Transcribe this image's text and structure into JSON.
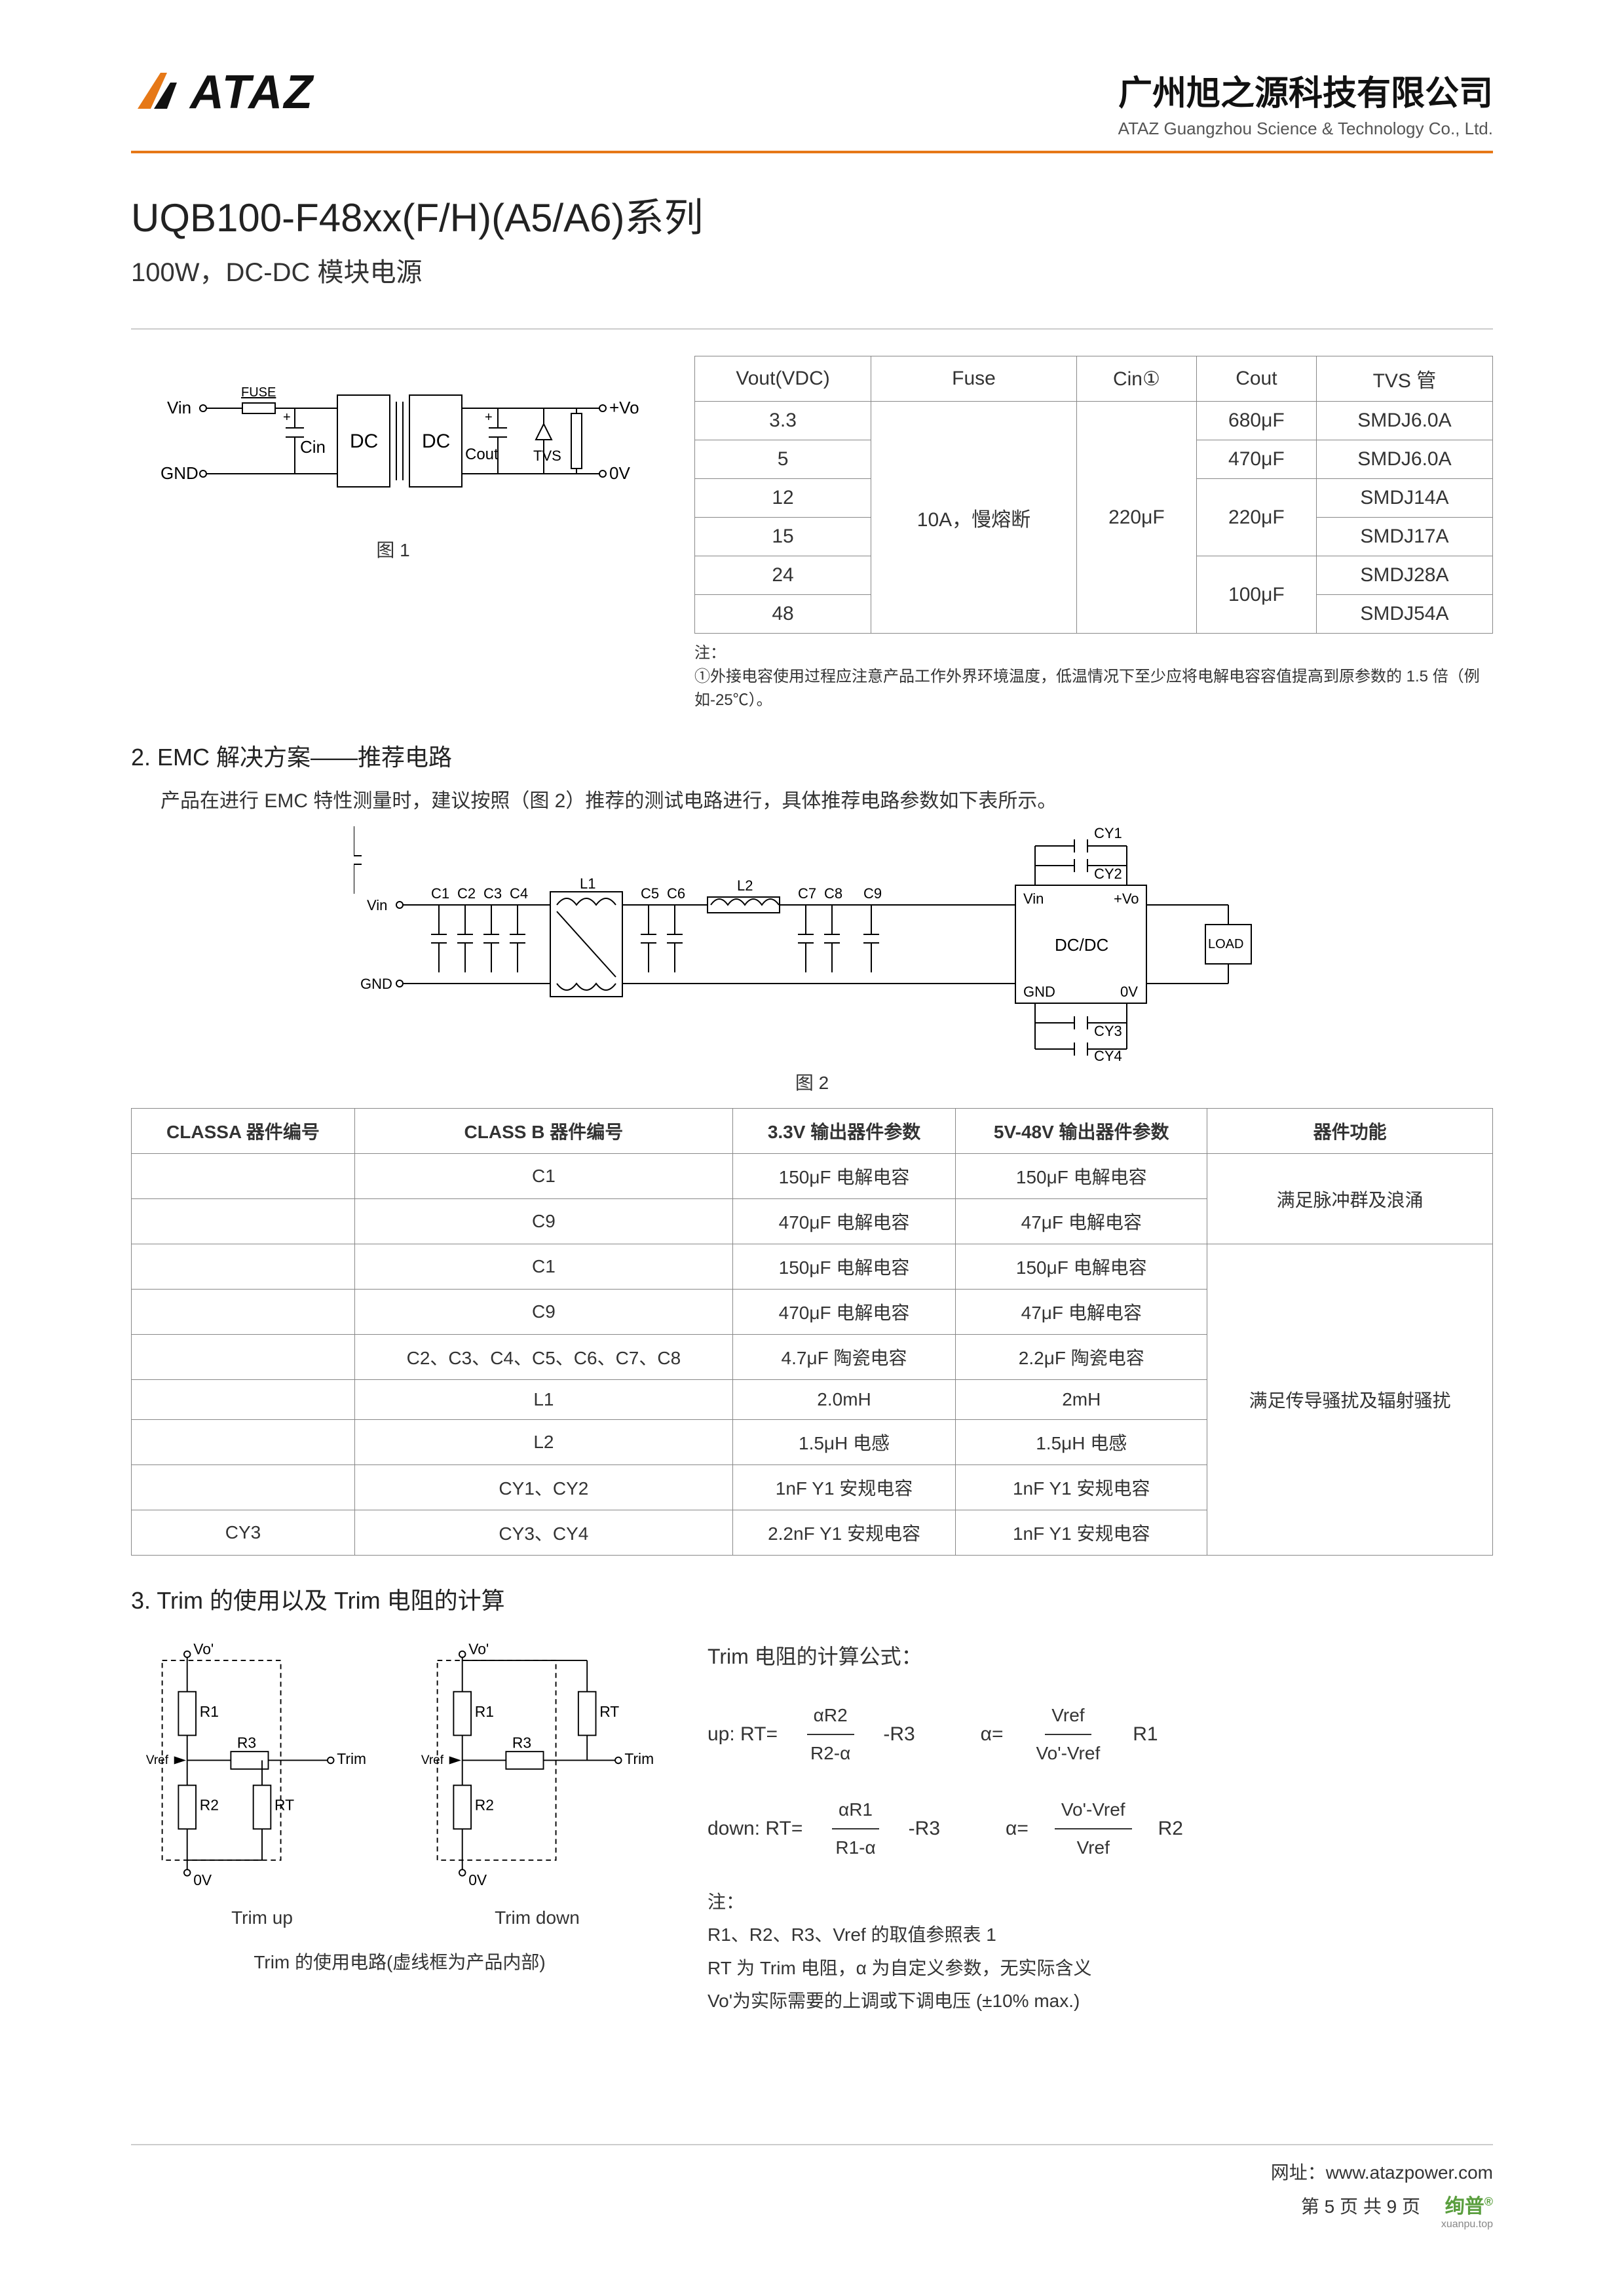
{
  "header": {
    "logo_text": "ATAZ",
    "company_cn": "广州旭之源科技有限公司",
    "company_en": "ATAZ Guangzhou Science & Technology Co., Ltd.",
    "accent_color": "#e67817"
  },
  "title": {
    "main": "UQB100-F48xx(F/H)(A5/A6)系列",
    "sub": "100W，DC-DC 模块电源"
  },
  "fig1": {
    "label": "图 1",
    "labels": {
      "vin": "Vin",
      "gnd": "GND",
      "fuse": "FUSE",
      "cin": "Cin",
      "dc1": "DC",
      "dc2": "DC",
      "cout": "Cout",
      "tvs": "TVS",
      "vo": "+Vo",
      "zero": "0V"
    }
  },
  "table1": {
    "headers": [
      "Vout(VDC)",
      "Fuse",
      "Cin①",
      "Cout",
      "TVS 管"
    ],
    "fuse_value": "10A，慢熔断",
    "cin_value": "220μF",
    "rows": [
      {
        "vout": "3.3",
        "cout": "680μF",
        "tvs": "SMDJ6.0A"
      },
      {
        "vout": "5",
        "cout": "470μF",
        "tvs": "SMDJ6.0A"
      },
      {
        "vout": "12",
        "cout": "220μF",
        "tvs": "SMDJ14A"
      },
      {
        "vout": "15",
        "cout": "220μF",
        "tvs": "SMDJ17A"
      },
      {
        "vout": "24",
        "cout": "100μF",
        "tvs": "SMDJ28A"
      },
      {
        "vout": "48",
        "cout": "100μF",
        "tvs": "SMDJ54A"
      }
    ],
    "note_label": "注：",
    "note_text": "①外接电容使用过程应注意产品工作外界环境温度，低温情况下至少应将电解电容容值提高到原参数的 1.5 倍（例如-25℃）。"
  },
  "section2": {
    "heading": "2.  EMC 解决方案——推荐电路",
    "para": "产品在进行 EMC 特性测量时，建议按照（图 2）推荐的测试电路进行，具体推荐电路参数如下表所示。"
  },
  "fig2": {
    "label": "图 2",
    "labels": {
      "vin": "Vin",
      "gnd": "GND",
      "c1": "C1",
      "c2": "C2",
      "c3": "C3",
      "c4": "C4",
      "l1": "L1",
      "c5": "C5",
      "c6": "C6",
      "l2": "L2",
      "c7": "C7",
      "c8": "C8",
      "c9": "C9",
      "cy1": "CY1",
      "cy2": "CY2",
      "cy3": "CY3",
      "cy4": "CY4",
      "module": "DC/DC",
      "mod_vin": "Vin",
      "mod_vo": "+Vo",
      "mod_gnd": "GND",
      "mod_0v": "0V",
      "load": "LOAD"
    }
  },
  "table2": {
    "headers": [
      "CLASSA  器件编号",
      "CLASS B  器件编号",
      "3.3V 输出器件参数",
      "5V-48V 输出器件参数",
      "器件功能"
    ],
    "rows": [
      {
        "a": "",
        "b": "C1",
        "p33": "150μF 电解电容",
        "p48": "150μF 电解电容",
        "func": "满足脉冲群及浪涌",
        "func_span": 2
      },
      {
        "a": "",
        "b": "C9",
        "p33": "470μF 电解电容",
        "p48": "47μF 电解电容"
      },
      {
        "a": "",
        "b": "C1",
        "p33": "150μF 电解电容",
        "p48": "150μF 电解电容",
        "func": "满足传导骚扰及辐射骚扰",
        "func_span": 7
      },
      {
        "a": "",
        "b": "C9",
        "p33": "470μF 电解电容",
        "p48": "47μF 电解电容"
      },
      {
        "a": "",
        "b": "C2、C3、C4、C5、C6、C7、C8",
        "p33": "4.7μF 陶瓷电容",
        "p48": "2.2μF 陶瓷电容"
      },
      {
        "a": "",
        "b": "L1",
        "p33": "2.0mH",
        "p48": "2mH"
      },
      {
        "a": "",
        "b": "L2",
        "p33": "1.5μH 电感",
        "p48": "1.5μH 电感"
      },
      {
        "a": "",
        "b": "CY1、CY2",
        "p33": "1nF Y1 安规电容",
        "p48": "1nF Y1 安规电容"
      },
      {
        "a": "CY3",
        "b": "CY3、CY4",
        "p33": "2.2nF Y1 安规电容",
        "p48": "1nF Y1 安规电容"
      }
    ]
  },
  "section3": {
    "heading": "3.   Trim 的使用以及 Trim 电阻的计算",
    "caption_up": "Trim up",
    "caption_down": "Trim down",
    "caption_below": "Trim 的使用电路(虚线框为产品内部)",
    "formula_title": "Trim 电阻的计算公式：",
    "up_label": "up:  RT=",
    "down_label": "down:  RT=",
    "up_frac_num": "αR2",
    "up_frac_den": "R2-α",
    "up_tail": "-R3",
    "a_up_num": "Vref",
    "a_up_den": "Vo'-Vref",
    "a_up_tail": "R1",
    "down_frac_num": "αR1",
    "down_frac_den": "R1-α",
    "down_tail": "-R3",
    "a_down_num": "Vo'-Vref",
    "a_down_den": "Vref",
    "a_down_tail": "R2",
    "alpha_label": "α=",
    "note_label": "注：",
    "note1": "R1、R2、R3、Vref 的取值参照表 1",
    "note2": "RT 为 Trim 电阻，α 为自定义参数，无实际含义",
    "note3": "Vo'为实际需要的上调或下调电压  (±10% max.)",
    "diagram_labels": {
      "vo": "Vo'",
      "zero": "0V",
      "r1": "R1",
      "r2": "R2",
      "r3": "R3",
      "rt": "RT",
      "vref": "Vref",
      "trim": "Trim"
    }
  },
  "footer": {
    "url_label": "网址：",
    "url": "www.atazpower.com",
    "page": "第 5 页 共 9 页",
    "brand": "绚普",
    "brand_sub": "xuanpu.top"
  }
}
